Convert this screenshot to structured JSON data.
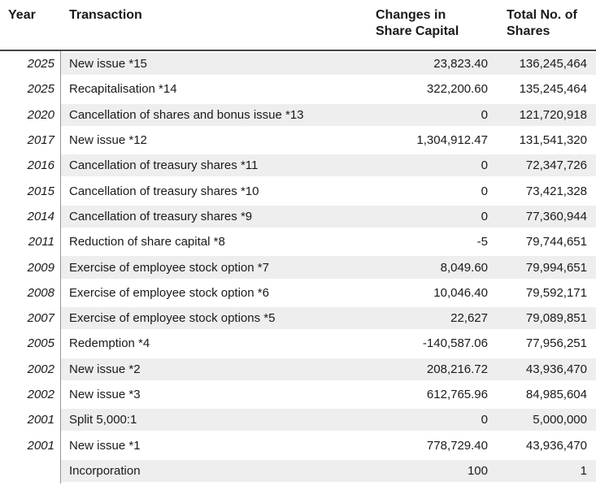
{
  "colors": {
    "text": "#1a1a1a",
    "stripe": "#eeeeee",
    "divider": "#979797",
    "header_rule": "#454545",
    "background": "#ffffff"
  },
  "table": {
    "columns": [
      {
        "key": "year",
        "label": "Year"
      },
      {
        "key": "transaction",
        "label": "Transaction"
      },
      {
        "key": "changes",
        "label": "Changes in Share Capital"
      },
      {
        "key": "total",
        "label": "Total No. of Shares"
      }
    ],
    "rows": [
      {
        "year": "2025",
        "transaction": "New issue *15",
        "changes": "23,823.40",
        "total": "136,245,464"
      },
      {
        "year": "2025",
        "transaction": "Recapitalisation *14",
        "changes": "322,200.60",
        "total": "135,245,464"
      },
      {
        "year": "2020",
        "transaction": "Cancellation of shares and bonus issue *13",
        "changes": "0",
        "total": "121,720,918"
      },
      {
        "year": "2017",
        "transaction": "New issue *12",
        "changes": "1,304,912.47",
        "total": "131,541,320"
      },
      {
        "year": "2016",
        "transaction": "Cancellation of treasury shares *11",
        "changes": "0",
        "total": "72,347,726"
      },
      {
        "year": "2015",
        "transaction": "Cancellation of treasury shares *10",
        "changes": "0",
        "total": "73,421,328"
      },
      {
        "year": "2014",
        "transaction": "Cancellation of treasury shares *9",
        "changes": "0",
        "total": "77,360,944"
      },
      {
        "year": "2011",
        "transaction": "Reduction of share capital *8",
        "changes": "-5",
        "total": "79,744,651"
      },
      {
        "year": "2009",
        "transaction": "Exercise of employee stock option *7",
        "changes": "8,049.60",
        "total": "79,994,651"
      },
      {
        "year": "2008",
        "transaction": "Exercise of employee stock option *6",
        "changes": "10,046.40",
        "total": "79,592,171"
      },
      {
        "year": "2007",
        "transaction": "Exercise of employee stock options *5",
        "changes": "22,627",
        "total": "79,089,851"
      },
      {
        "year": "2005",
        "transaction": "Redemption *4",
        "changes": "-140,587.06",
        "total": "77,956,251"
      },
      {
        "year": "2002",
        "transaction": "New issue *2",
        "changes": "208,216.72",
        "total": "43,936,470"
      },
      {
        "year": "2002",
        "transaction": "New issue *3",
        "changes": "612,765.96",
        "total": "84,985,604"
      },
      {
        "year": "2001",
        "transaction": "Split 5,000:1",
        "changes": "0",
        "total": "5,000,000"
      },
      {
        "year": "2001",
        "transaction": "New issue *1",
        "changes": "778,729.40",
        "total": "43,936,470"
      },
      {
        "year": "",
        "transaction": "Incorporation",
        "changes": "100",
        "total": "1"
      }
    ]
  }
}
